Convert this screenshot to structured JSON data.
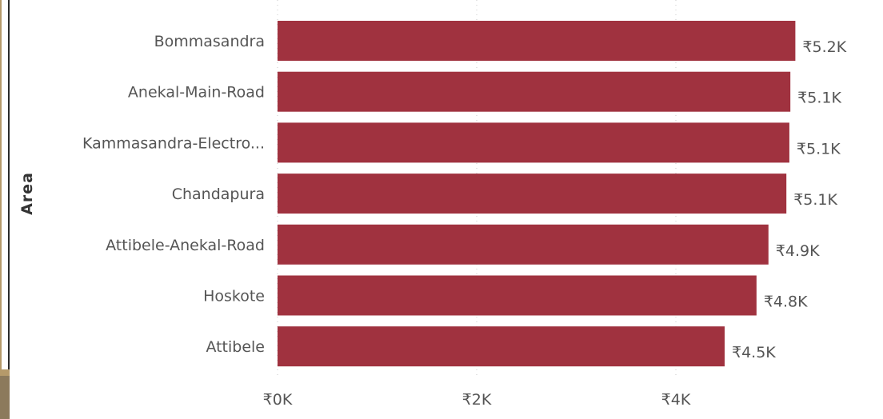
{
  "chart_data": {
    "type": "bar",
    "orientation": "horizontal",
    "ylabel": "Area",
    "xlabel": "",
    "categories": [
      "Bommasandra",
      "Anekal-Main-Road",
      "Kammasandra-Electro...",
      "Chandapura",
      "Attibele-Anekal-Road",
      "Hoskote",
      "Attibele"
    ],
    "values": [
      5200,
      5150,
      5140,
      5110,
      4930,
      4810,
      4490
    ],
    "value_labels": [
      "₹5.2K",
      "₹5.1K",
      "₹5.1K",
      "₹5.1K",
      "₹4.9K",
      "₹4.8K",
      "₹4.5K"
    ],
    "xticks": [
      0,
      2000,
      4000
    ],
    "xtick_labels": [
      "₹0K",
      "₹2K",
      "₹4K"
    ],
    "xlim": [
      0,
      5400
    ],
    "grid": "vertical dotted",
    "colors": {
      "bar": "#a0323f",
      "text": "#555555",
      "grid": "#c8c8c8"
    }
  }
}
